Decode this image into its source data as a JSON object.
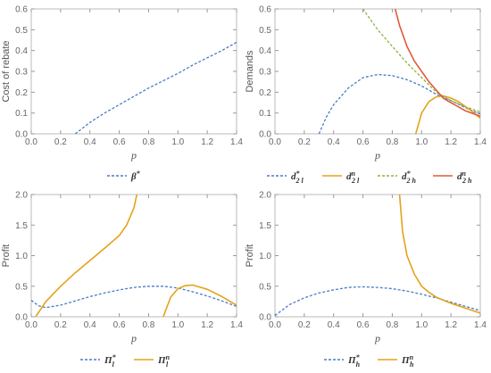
{
  "chart_data": [
    {
      "type": "line",
      "xlabel": "p",
      "ylabel": "Cost of rebate",
      "xlim": [
        0,
        1.4
      ],
      "ylim": [
        0,
        0.6
      ],
      "xticks": [
        "0.0",
        "0.2",
        "0.4",
        "0.6",
        "0.8",
        "1.0",
        "1.2",
        "1.4"
      ],
      "yticks": [
        "0.0",
        "0.1",
        "0.2",
        "0.3",
        "0.4",
        "0.5",
        "0.6"
      ],
      "legend_position": "bottom",
      "series": [
        {
          "name": "β*",
          "color": "#4a7cc7",
          "dash": true,
          "x": [
            0.3,
            0.4,
            0.5,
            0.6,
            0.7,
            0.8,
            0.9,
            1.0,
            1.1,
            1.2,
            1.3,
            1.4
          ],
          "y": [
            0.0,
            0.055,
            0.1,
            0.14,
            0.18,
            0.22,
            0.255,
            0.29,
            0.33,
            0.365,
            0.4,
            0.44
          ]
        }
      ]
    },
    {
      "type": "line",
      "xlabel": "p",
      "ylabel": "Demands",
      "xlim": [
        0,
        1.4
      ],
      "ylim": [
        0,
        0.6
      ],
      "xticks": [
        "0.0",
        "0.2",
        "0.4",
        "0.6",
        "0.8",
        "1.0",
        "1.2",
        "1.4"
      ],
      "yticks": [
        "0.0",
        "0.1",
        "0.2",
        "0.3",
        "0.4",
        "0.5",
        "0.6"
      ],
      "legend_position": "bottom",
      "series": [
        {
          "name": "d*2 l",
          "color": "#4a7cc7",
          "dash": true,
          "x": [
            0.3,
            0.35,
            0.4,
            0.5,
            0.6,
            0.7,
            0.8,
            0.9,
            1.0,
            1.1,
            1.2,
            1.3,
            1.4
          ],
          "y": [
            0.0,
            0.08,
            0.14,
            0.22,
            0.27,
            0.285,
            0.28,
            0.26,
            0.23,
            0.19,
            0.16,
            0.125,
            0.095
          ]
        },
        {
          "name": "dn2 l",
          "color": "#e3a31b",
          "dash": false,
          "x": [
            0.96,
            1.0,
            1.05,
            1.1,
            1.15,
            1.2,
            1.25,
            1.3,
            1.35,
            1.4
          ],
          "y": [
            0.0,
            0.1,
            0.155,
            0.178,
            0.182,
            0.172,
            0.155,
            0.13,
            0.105,
            0.075
          ]
        },
        {
          "name": "d*2 h",
          "color": "#8bb43d",
          "dash": true,
          "x": [
            0.6,
            0.7,
            0.8,
            0.9,
            1.0,
            1.1,
            1.2,
            1.3,
            1.4
          ],
          "y": [
            0.6,
            0.5,
            0.42,
            0.34,
            0.27,
            0.2,
            0.16,
            0.13,
            0.105
          ]
        },
        {
          "name": "dn2 h",
          "color": "#e05a3a",
          "dash": false,
          "x": [
            0.82,
            0.85,
            0.9,
            0.95,
            1.0,
            1.05,
            1.1,
            1.15,
            1.2,
            1.3,
            1.4
          ],
          "y": [
            0.6,
            0.52,
            0.42,
            0.35,
            0.3,
            0.25,
            0.21,
            0.17,
            0.15,
            0.11,
            0.085
          ]
        }
      ]
    },
    {
      "type": "line",
      "xlabel": "p",
      "ylabel": "Profit",
      "xlim": [
        0,
        1.4
      ],
      "ylim": [
        0,
        2.0
      ],
      "xticks": [
        "0.0",
        "0.2",
        "0.4",
        "0.6",
        "0.8",
        "1.0",
        "1.2",
        "1.4"
      ],
      "yticks": [
        "0.0",
        "0.5",
        "1.0",
        "1.5",
        "2.0"
      ],
      "legend_position": "bottom",
      "series": [
        {
          "name": "Π*l",
          "color": "#4a7cc7",
          "dash": true,
          "x": [
            0.0,
            0.05,
            0.1,
            0.2,
            0.3,
            0.4,
            0.5,
            0.6,
            0.7,
            0.8,
            0.9,
            1.0,
            1.1,
            1.2,
            1.3,
            1.4
          ],
          "y": [
            0.27,
            0.18,
            0.15,
            0.19,
            0.26,
            0.33,
            0.39,
            0.44,
            0.48,
            0.5,
            0.5,
            0.47,
            0.41,
            0.34,
            0.26,
            0.17
          ]
        },
        {
          "name": "Πnl",
          "color": "#e3a31b",
          "dash": false,
          "x": [
            0.03,
            0.1,
            0.2,
            0.3,
            0.4,
            0.5,
            0.6,
            0.65,
            0.7,
            0.72
          ],
          "y": [
            0.0,
            0.25,
            0.5,
            0.72,
            0.92,
            1.12,
            1.33,
            1.5,
            1.78,
            2.0
          ]
        },
        {
          "name": "Πnl",
          "color": "#e3a31b",
          "dash": false,
          "x": [
            0.9,
            0.95,
            1.0,
            1.05,
            1.1,
            1.2,
            1.3,
            1.4
          ],
          "y": [
            0.0,
            0.32,
            0.46,
            0.51,
            0.52,
            0.45,
            0.33,
            0.19
          ]
        }
      ]
    },
    {
      "type": "line",
      "xlabel": "p",
      "ylabel": "Profit",
      "xlim": [
        0,
        1.4
      ],
      "ylim": [
        0,
        2.0
      ],
      "xticks": [
        "0.0",
        "0.2",
        "0.4",
        "0.6",
        "0.8",
        "1.0",
        "1.2",
        "1.4"
      ],
      "yticks": [
        "0.0",
        "0.5",
        "1.0",
        "1.5",
        "2.0"
      ],
      "legend_position": "bottom",
      "series": [
        {
          "name": "Π*h",
          "color": "#4a7cc7",
          "dash": true,
          "x": [
            0.0,
            0.1,
            0.2,
            0.3,
            0.4,
            0.5,
            0.6,
            0.7,
            0.8,
            0.9,
            1.0,
            1.1,
            1.2,
            1.3,
            1.4
          ],
          "y": [
            0.02,
            0.2,
            0.31,
            0.39,
            0.44,
            0.48,
            0.49,
            0.48,
            0.46,
            0.42,
            0.37,
            0.31,
            0.24,
            0.17,
            0.1
          ]
        },
        {
          "name": "Πnh",
          "color": "#e3a31b",
          "dash": false,
          "x": [
            0.85,
            0.87,
            0.9,
            0.95,
            1.0,
            1.05,
            1.1,
            1.2,
            1.3,
            1.4
          ],
          "y": [
            2.0,
            1.4,
            1.0,
            0.7,
            0.5,
            0.4,
            0.32,
            0.22,
            0.14,
            0.06
          ]
        }
      ]
    }
  ]
}
